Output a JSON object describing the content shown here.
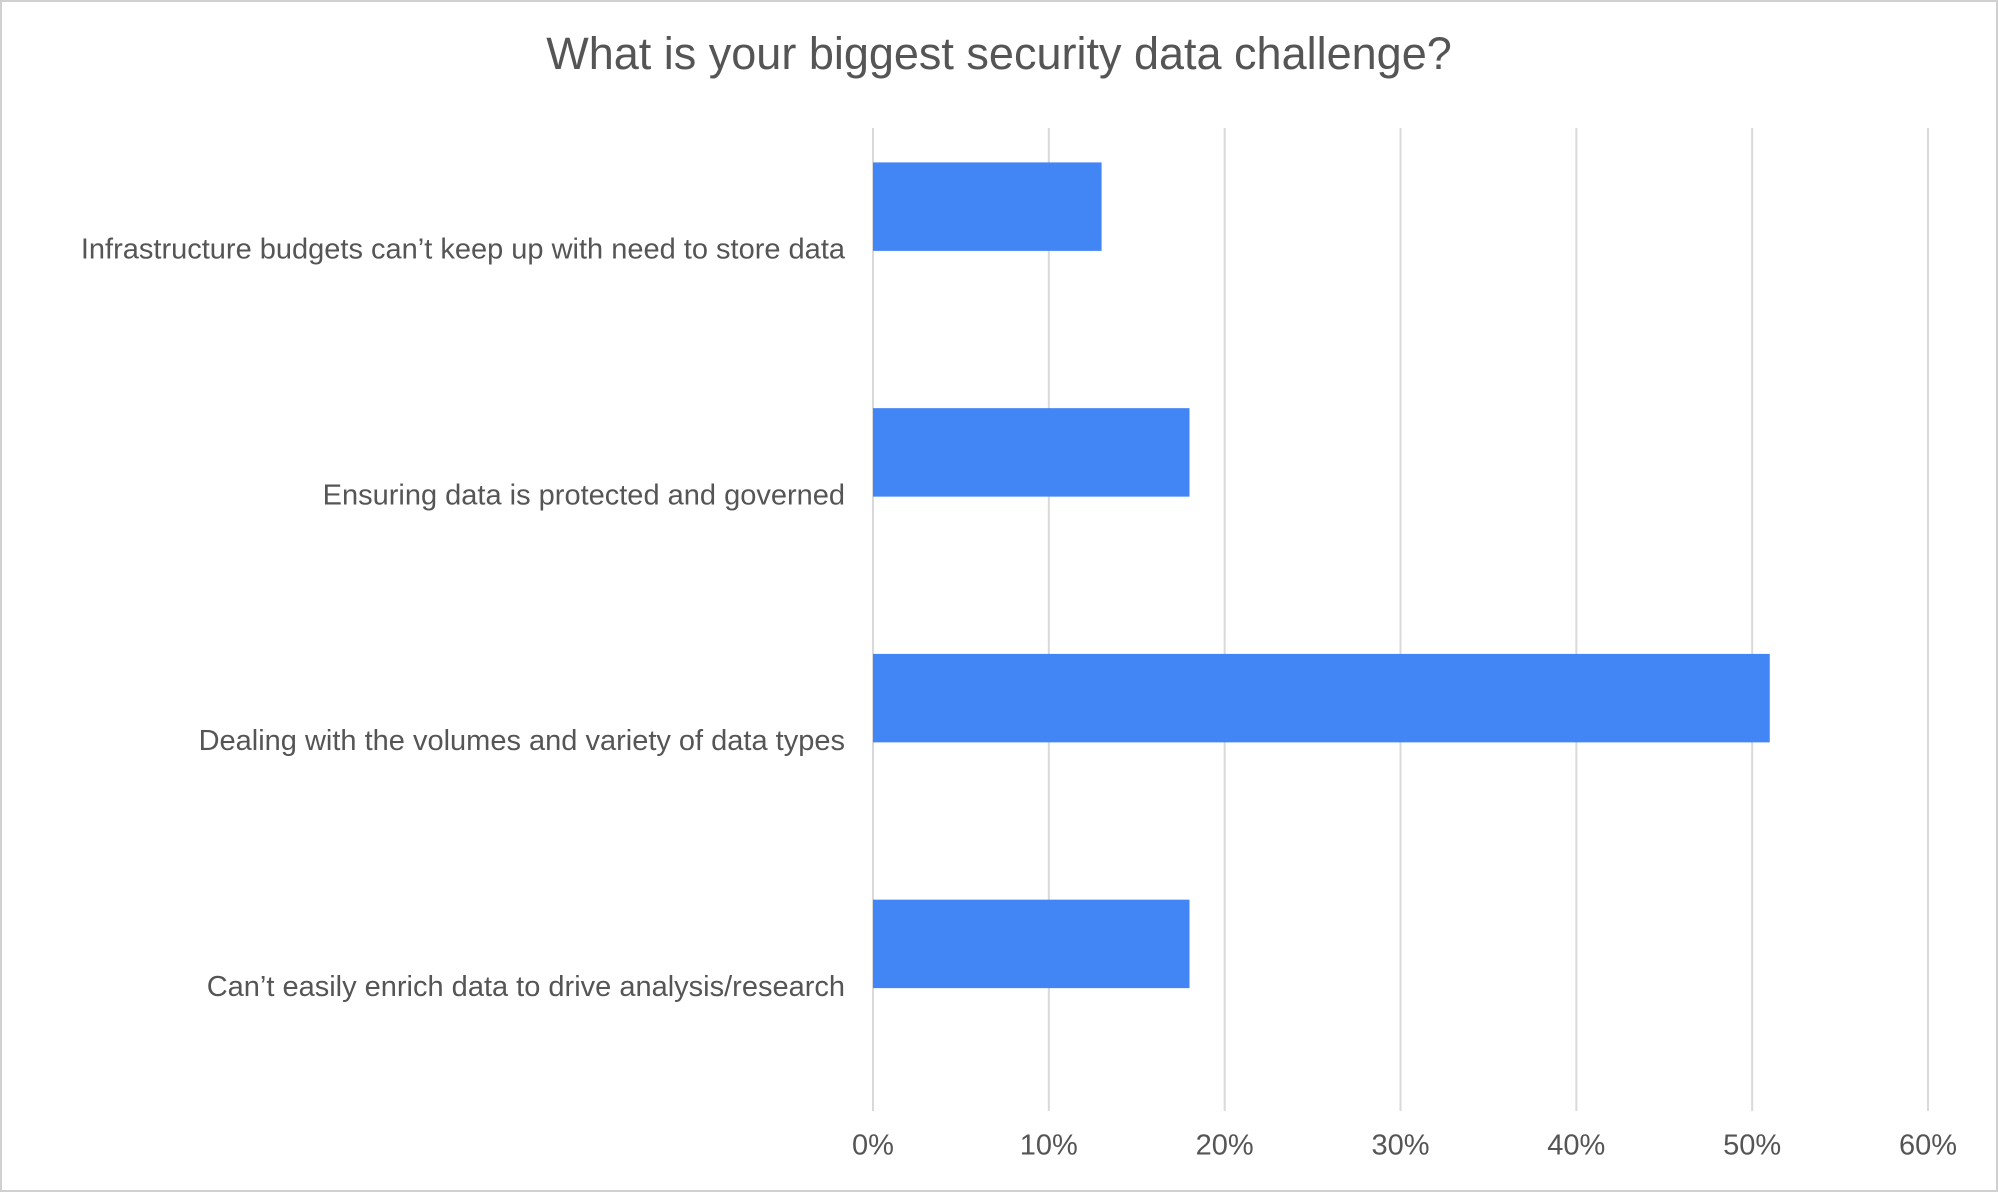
{
  "chart_data": {
    "type": "bar",
    "orientation": "horizontal",
    "title": "What is your biggest security data challenge?",
    "categories": [
      "Infrastructure budgets can’t keep up with need to store data",
      "Ensuring data is protected and governed",
      "Dealing with the volumes and variety of data types",
      "Can’t easily enrich data to drive analysis/research"
    ],
    "values": [
      13,
      18,
      51,
      18
    ],
    "color": "#4285f4",
    "xlim": [
      0,
      60
    ],
    "xticks": [
      {
        "value": 0,
        "label": "0%"
      },
      {
        "value": 10,
        "label": "10%"
      },
      {
        "value": 20,
        "label": "20%"
      },
      {
        "value": 30,
        "label": "30%"
      },
      {
        "value": 40,
        "label": "40%"
      },
      {
        "value": 50,
        "label": "50%"
      },
      {
        "value": 60,
        "label": "60%"
      }
    ],
    "grid": true
  }
}
